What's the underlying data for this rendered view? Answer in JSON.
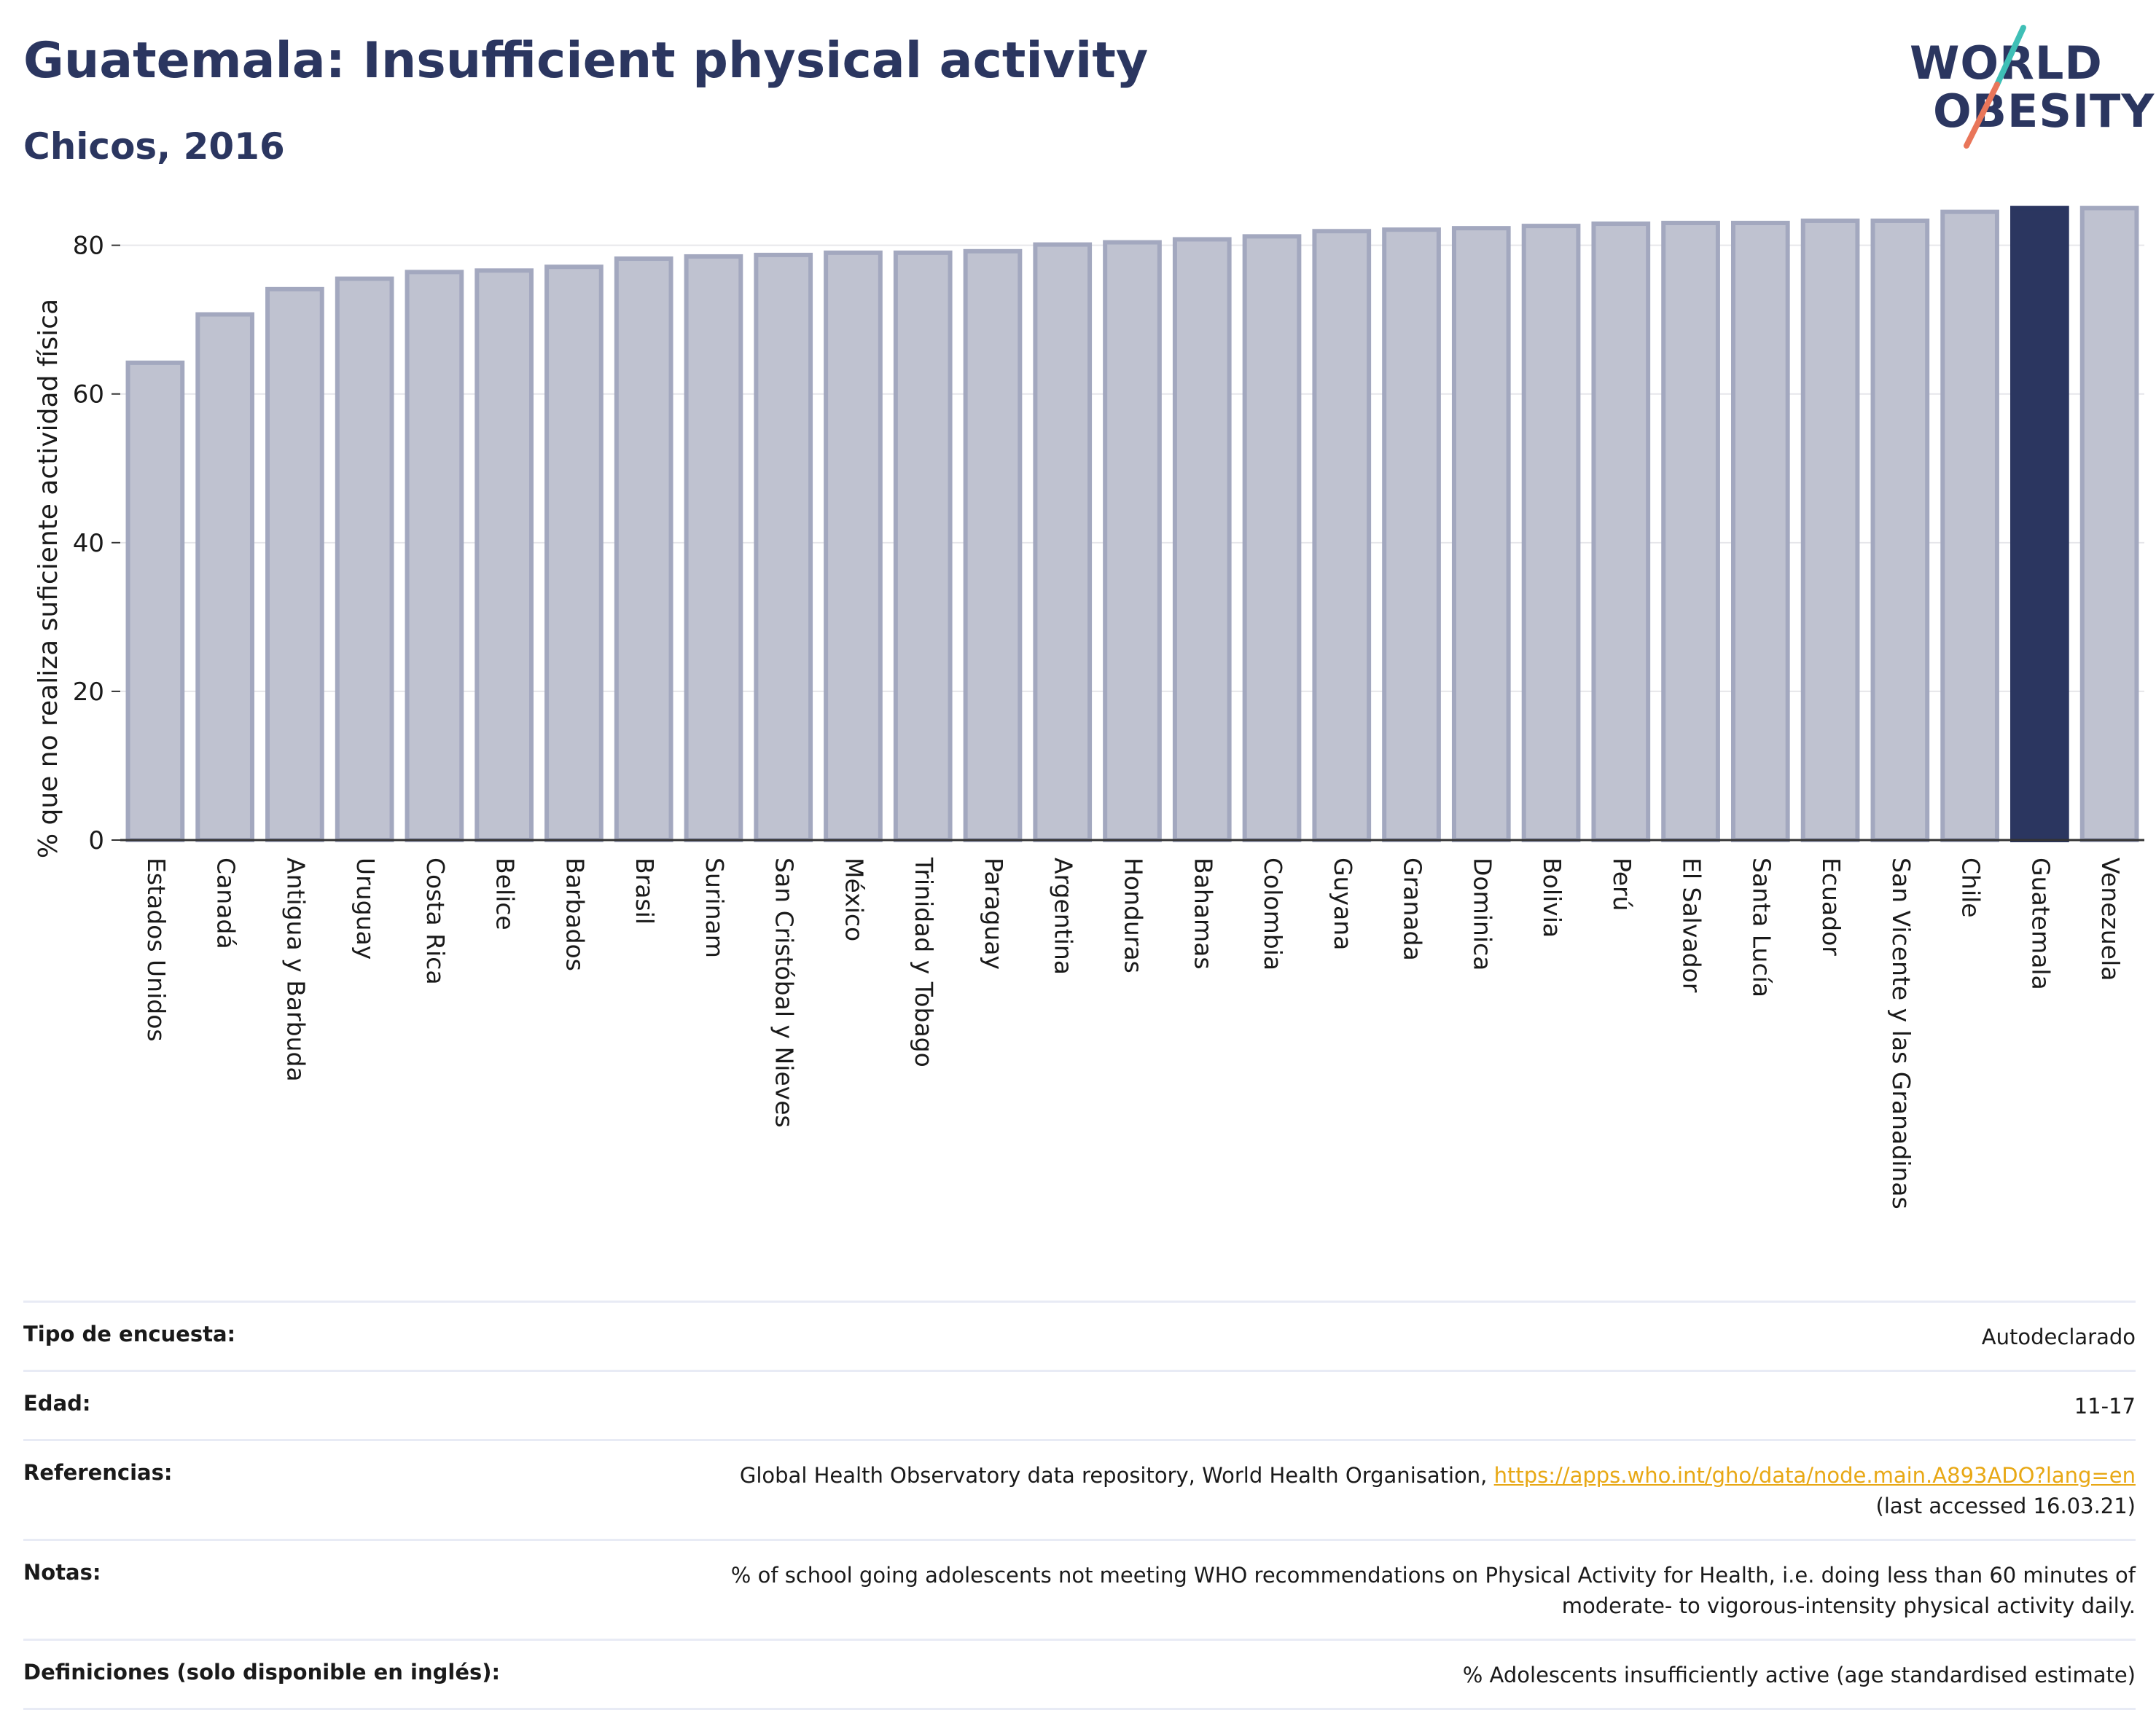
{
  "header": {
    "title": "Guatemala: Insufficient physical activity",
    "subtitle": "Chicos, 2016"
  },
  "logo": {
    "line1": "WORLD",
    "line2": "OBESITY"
  },
  "colors": {
    "bar_fill": "#bfc2d0",
    "bar_stroke": "#a3a8bf",
    "highlight": "#2b3660",
    "grid": "#e6e6ea",
    "axis": "#333333",
    "logo_teal": "#3fbfb6",
    "logo_coral": "#e9765a"
  },
  "chart_data": {
    "type": "bar",
    "ylabel": "% que no realiza suficiente actividad física",
    "xlabel": "",
    "ylim": [
      0,
      88
    ],
    "yticks": [
      0,
      20,
      40,
      60,
      80
    ],
    "grid": true,
    "highlight": "Guatemala",
    "categories": [
      "Estados Unidos",
      "Canadá",
      "Antigua y Barbuda",
      "Uruguay",
      "Costa Rica",
      "Belice",
      "Barbados",
      "Brasil",
      "Surinam",
      "San Cristóbal y Nieves",
      "México",
      "Trinidad y Tobago",
      "Paraguay",
      "Argentina",
      "Honduras",
      "Bahamas",
      "Colombia",
      "Guyana",
      "Granada",
      "Dominica",
      "Bolivia",
      "Perú",
      "El Salvador",
      "Santa Lucía",
      "Ecuador",
      "San Vicente y las Granadinas",
      "Chile",
      "Guatemala",
      "Venezuela"
    ],
    "values": [
      64.2,
      70.7,
      74.1,
      75.5,
      76.4,
      76.6,
      77.1,
      78.2,
      78.5,
      78.7,
      79.0,
      79.0,
      79.2,
      80.1,
      80.4,
      80.8,
      81.2,
      81.9,
      82.1,
      82.3,
      82.6,
      82.9,
      83.0,
      83.0,
      83.3,
      83.3,
      84.5,
      85.0,
      85.0
    ]
  },
  "info": {
    "rows": [
      {
        "label": "Tipo de encuesta:",
        "value": "Autodeclarado"
      },
      {
        "label": "Edad:",
        "value": "11-17"
      },
      {
        "label": "Referencias:",
        "value_prefix": "Global Health Observatory data repository, World Health Organisation, ",
        "link": "https://apps.who.int/gho/data/node.main.A893ADO?lang=en",
        "value_suffix": "(last accessed 16.03.21)"
      },
      {
        "label": "Notas:",
        "value_line1": "% of school going adolescents not meeting WHO recommendations on Physical Activity for Health, i.e. doing less than 60 minutes of",
        "value_line2": "moderate- to vigorous-intensity physical activity daily."
      },
      {
        "label": "Definiciones (solo disponible en inglés):",
        "value": "% Adolescents insufficiently active (age standardised estimate)"
      }
    ]
  }
}
